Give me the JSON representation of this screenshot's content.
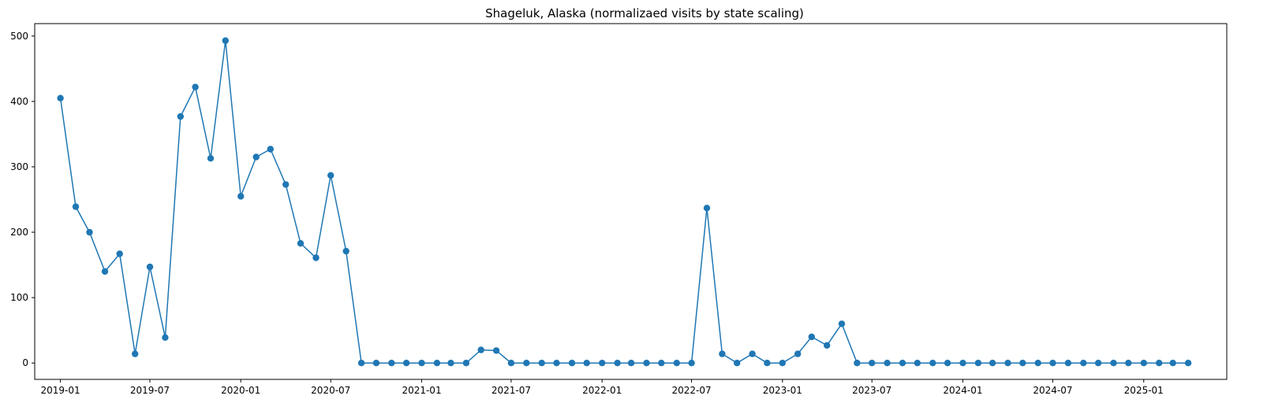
{
  "chart_data": {
    "type": "line",
    "title": "Shageluk, Alaska (normalizaed visits by state scaling)",
    "xlabel": "",
    "ylabel": "",
    "grid": false,
    "marker": "circle",
    "color": "#1f77b4",
    "x_ticks": [
      "2019-01",
      "2019-07",
      "2020-01",
      "2020-07",
      "2021-01",
      "2021-07",
      "2022-01",
      "2022-07",
      "2023-01",
      "2023-07",
      "2024-01",
      "2024-07",
      "2025-01"
    ],
    "y_ticks": [
      0,
      100,
      200,
      300,
      400,
      500
    ],
    "xlim": [
      "2018-11-10",
      "2025-06-18"
    ],
    "ylim": [
      -25,
      519
    ],
    "series": [
      {
        "x": [
          "2019-01-01",
          "2019-02-01",
          "2019-03-01",
          "2019-04-01",
          "2019-05-01",
          "2019-06-01",
          "2019-07-01",
          "2019-08-01",
          "2019-09-01",
          "2019-10-01",
          "2019-11-01",
          "2019-12-01",
          "2020-01-01",
          "2020-02-01",
          "2020-03-01",
          "2020-04-01",
          "2020-05-01",
          "2020-06-01",
          "2020-07-01",
          "2020-08-01",
          "2020-09-01",
          "2020-10-01",
          "2020-11-01",
          "2020-12-01",
          "2021-01-01",
          "2021-02-01",
          "2021-03-01",
          "2021-04-01",
          "2021-05-01",
          "2021-06-01",
          "2021-07-01",
          "2021-08-01",
          "2021-09-01",
          "2021-10-01",
          "2021-11-01",
          "2021-12-01",
          "2022-01-01",
          "2022-02-01",
          "2022-03-01",
          "2022-04-01",
          "2022-05-01",
          "2022-06-01",
          "2022-07-01",
          "2022-08-01",
          "2022-09-01",
          "2022-10-01",
          "2022-11-01",
          "2022-12-01",
          "2023-01-01",
          "2023-02-01",
          "2023-03-01",
          "2023-04-01",
          "2023-05-01",
          "2023-06-01",
          "2023-07-01",
          "2023-08-01",
          "2023-09-01",
          "2023-10-01",
          "2023-11-01",
          "2023-12-01",
          "2024-01-01",
          "2024-02-01",
          "2024-03-01",
          "2024-04-01",
          "2024-05-01",
          "2024-06-01",
          "2024-07-01",
          "2024-08-01",
          "2024-09-01",
          "2024-10-01",
          "2024-11-01",
          "2024-12-01",
          "2025-01-01",
          "2025-02-01",
          "2025-03-01",
          "2025-04-01"
        ],
        "y": [
          405,
          239,
          200,
          140,
          167,
          14,
          147,
          39,
          377,
          422,
          313,
          493,
          255,
          315,
          327,
          273,
          183,
          161,
          287,
          171,
          0,
          0,
          0,
          0,
          0,
          0,
          0,
          0,
          20,
          19,
          0,
          0,
          0,
          0,
          0,
          0,
          0,
          0,
          0,
          0,
          0,
          0,
          0,
          237,
          14,
          0,
          14,
          0,
          0,
          14,
          40,
          27,
          60,
          0,
          0,
          0,
          0,
          0,
          0,
          0,
          0,
          0,
          0,
          0,
          0,
          0,
          0,
          0,
          0,
          0,
          0,
          0,
          0,
          0,
          0,
          0
        ]
      }
    ]
  }
}
